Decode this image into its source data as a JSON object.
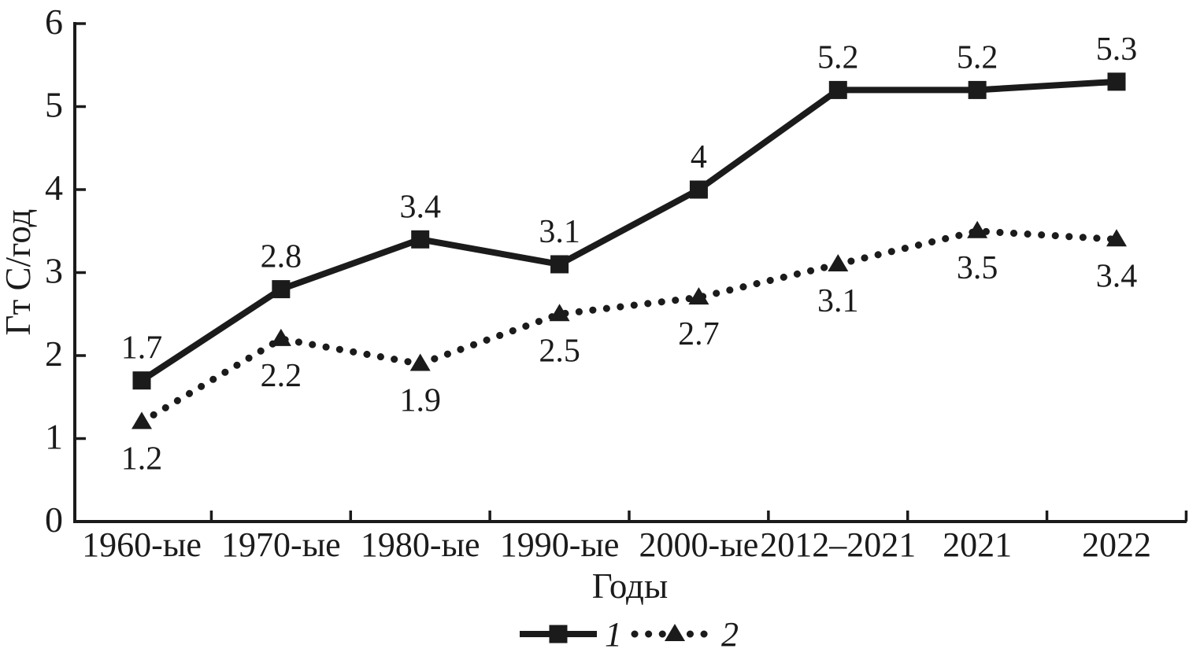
{
  "chart_data": {
    "type": "line",
    "title": "",
    "xlabel": "Годы",
    "ylabel": "Гт С/год",
    "ylim": [
      0,
      6
    ],
    "yticks": [
      0,
      1,
      2,
      3,
      4,
      5,
      6
    ],
    "grid": false,
    "legend_position": "bottom-center",
    "categories": [
      "1960-ые",
      "1970-ые",
      "1980-ые",
      "1990-ые",
      "2000-ые",
      "2012–2021",
      "2021",
      "2022"
    ],
    "series": [
      {
        "name": "1",
        "line_style": "solid",
        "marker": "square",
        "label_position": "above",
        "values": [
          1.7,
          2.8,
          3.4,
          3.1,
          4,
          5.2,
          5.2,
          5.3
        ],
        "labels": [
          "1.7",
          "2.8",
          "3.4",
          "3.1",
          "4",
          "5.2",
          "5.2",
          "5.3"
        ]
      },
      {
        "name": "2",
        "line_style": "dotted",
        "marker": "triangle",
        "label_position": "below",
        "values": [
          1.2,
          2.2,
          1.9,
          2.5,
          2.7,
          3.1,
          3.5,
          3.4
        ],
        "labels": [
          "1.2",
          "2.2",
          "1.9",
          "2.5",
          "2.7",
          "3.1",
          "3.5",
          "3.4"
        ]
      }
    ],
    "legend": [
      {
        "label": "1"
      },
      {
        "label": "2"
      }
    ],
    "colors": {
      "line": "#1b1b1b",
      "text": "#1b1b1b",
      "background": "#ffffff"
    }
  }
}
